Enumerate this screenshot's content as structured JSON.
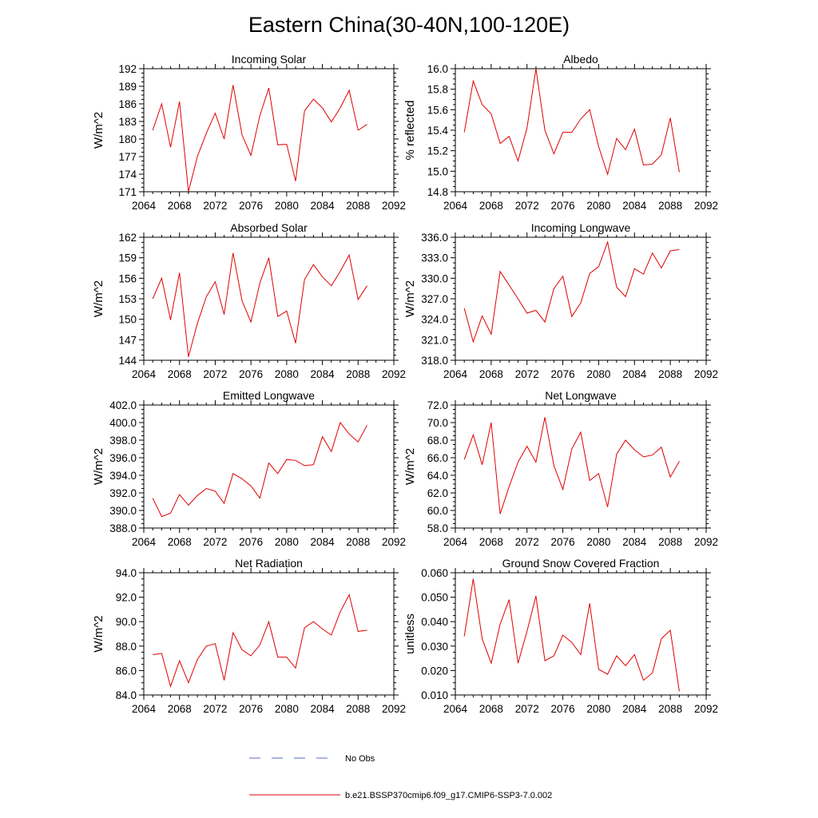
{
  "figure": {
    "title": "Eastern China(30-40N,100-120E)",
    "series_color": "#e00000",
    "obs_color": "#5566cc"
  },
  "legend": {
    "obs_label": "No Obs",
    "model_label": "b.e21.BSSP370cmip6.f09_g17.CMIP6-SSP3-7.0.002"
  },
  "chart_data": [
    {
      "type": "line",
      "title": "Incoming Solar",
      "ylabel": "W/m^2",
      "xlim": [
        2064,
        2092
      ],
      "ylim": [
        171,
        192
      ],
      "xticks": [
        "2064",
        "2068",
        "2072",
        "2076",
        "2080",
        "2084",
        "2088",
        "2092"
      ],
      "yticks": [
        "171",
        "174",
        "177",
        "180",
        "183",
        "186",
        "189",
        "192"
      ],
      "series": [
        {
          "x": [
            2065,
            2066,
            2067,
            2068,
            2069,
            2070,
            2071,
            2072,
            2073,
            2074,
            2075,
            2076,
            2077,
            2078,
            2079,
            2080,
            2081,
            2082,
            2083,
            2084,
            2085,
            2086,
            2087,
            2088,
            2089
          ],
          "y": [
            181.5,
            186.0,
            178.6,
            186.4,
            171.0,
            177.0,
            181.0,
            184.4,
            180.0,
            189.2,
            180.7,
            177.2,
            184.0,
            188.7,
            179.0,
            179.1,
            172.8,
            184.8,
            186.8,
            185.3,
            182.9,
            185.3,
            188.3,
            181.5,
            182.5
          ]
        }
      ]
    },
    {
      "type": "line",
      "title": "Albedo",
      "ylabel": "% reflected",
      "xlim": [
        2064,
        2092
      ],
      "ylim": [
        14.8,
        16.0
      ],
      "xticks": [
        "2064",
        "2068",
        "2072",
        "2076",
        "2080",
        "2084",
        "2088",
        "2092"
      ],
      "yticks": [
        "14.8",
        "15.0",
        "15.2",
        "15.4",
        "15.6",
        "15.8",
        "16.0"
      ],
      "series": [
        {
          "x": [
            2065,
            2066,
            2067,
            2068,
            2069,
            2070,
            2071,
            2072,
            2073,
            2074,
            2075,
            2076,
            2077,
            2078,
            2079,
            2080,
            2081,
            2082,
            2083,
            2084,
            2085,
            2086,
            2087,
            2088,
            2089
          ],
          "y": [
            15.38,
            15.88,
            15.65,
            15.56,
            15.27,
            15.34,
            15.1,
            15.42,
            16.0,
            15.4,
            15.17,
            15.38,
            15.38,
            15.51,
            15.6,
            15.24,
            14.97,
            15.32,
            15.21,
            15.41,
            15.06,
            15.07,
            15.16,
            15.52,
            14.99
          ]
        }
      ]
    },
    {
      "type": "line",
      "title": "Absorbed Solar",
      "ylabel": "W/m^2",
      "xlim": [
        2064,
        2092
      ],
      "ylim": [
        144,
        162
      ],
      "xticks": [
        "2064",
        "2068",
        "2072",
        "2076",
        "2080",
        "2084",
        "2088",
        "2092"
      ],
      "yticks": [
        "144",
        "147",
        "150",
        "153",
        "156",
        "159",
        "162"
      ],
      "series": [
        {
          "x": [
            2065,
            2066,
            2067,
            2068,
            2069,
            2070,
            2071,
            2072,
            2073,
            2074,
            2075,
            2076,
            2077,
            2078,
            2079,
            2080,
            2081,
            2082,
            2083,
            2084,
            2085,
            2086,
            2087,
            2088,
            2089
          ],
          "y": [
            153.0,
            156.0,
            149.9,
            156.8,
            144.5,
            149.4,
            153.3,
            155.5,
            150.7,
            159.7,
            152.7,
            149.6,
            155.3,
            159.0,
            150.4,
            151.2,
            146.5,
            155.8,
            158.0,
            156.2,
            154.9,
            157.0,
            159.4,
            152.9,
            154.9
          ]
        }
      ]
    },
    {
      "type": "line",
      "title": "Incoming Longwave",
      "ylabel": "W/m^2",
      "xlim": [
        2064,
        2092
      ],
      "ylim": [
        318.0,
        336.0
      ],
      "xticks": [
        "2064",
        "2068",
        "2072",
        "2076",
        "2080",
        "2084",
        "2088",
        "2092"
      ],
      "yticks": [
        "318.0",
        "321.0",
        "324.0",
        "327.0",
        "330.0",
        "333.0",
        "336.0"
      ],
      "series": [
        {
          "x": [
            2065,
            2066,
            2067,
            2068,
            2069,
            2070,
            2071,
            2072,
            2073,
            2074,
            2075,
            2076,
            2077,
            2078,
            2079,
            2080,
            2081,
            2082,
            2083,
            2084,
            2085,
            2086,
            2087,
            2088,
            2089
          ],
          "y": [
            325.6,
            320.7,
            324.5,
            321.8,
            331.0,
            329.0,
            327.0,
            324.9,
            325.3,
            323.6,
            328.5,
            330.3,
            324.4,
            326.4,
            330.7,
            331.7,
            335.3,
            328.7,
            327.3,
            331.4,
            330.6,
            333.7,
            331.5,
            334.0,
            334.2
          ]
        }
      ]
    },
    {
      "type": "line",
      "title": "Emitted Longwave",
      "ylabel": "W/m^2",
      "xlim": [
        2064,
        2092
      ],
      "ylim": [
        388.0,
        402.0
      ],
      "xticks": [
        "2064",
        "2068",
        "2072",
        "2076",
        "2080",
        "2084",
        "2088",
        "2092"
      ],
      "yticks": [
        "388.0",
        "390.0",
        "392.0",
        "394.0",
        "396.0",
        "398.0",
        "400.0",
        "402.0"
      ],
      "series": [
        {
          "x": [
            2065,
            2066,
            2067,
            2068,
            2069,
            2070,
            2071,
            2072,
            2073,
            2074,
            2075,
            2076,
            2077,
            2078,
            2079,
            2080,
            2081,
            2082,
            2083,
            2084,
            2085,
            2086,
            2087,
            2088,
            2089
          ],
          "y": [
            391.4,
            389.3,
            389.7,
            391.8,
            390.6,
            391.7,
            392.5,
            392.2,
            390.8,
            394.2,
            393.6,
            392.8,
            391.4,
            395.4,
            394.2,
            395.8,
            395.7,
            395.1,
            395.2,
            398.4,
            396.7,
            400.0,
            398.7,
            397.8,
            399.7
          ]
        }
      ]
    },
    {
      "type": "line",
      "title": "Net Longwave",
      "ylabel": "W/m^2",
      "xlim": [
        2064,
        2092
      ],
      "ylim": [
        58.0,
        72.0
      ],
      "xticks": [
        "2064",
        "2068",
        "2072",
        "2076",
        "2080",
        "2084",
        "2088",
        "2092"
      ],
      "yticks": [
        "58.0",
        "60.0",
        "62.0",
        "64.0",
        "66.0",
        "68.0",
        "70.0",
        "72.0"
      ],
      "series": [
        {
          "x": [
            2065,
            2066,
            2067,
            2068,
            2069,
            2070,
            2071,
            2072,
            2073,
            2074,
            2075,
            2076,
            2077,
            2078,
            2079,
            2080,
            2081,
            2082,
            2083,
            2084,
            2085,
            2086,
            2087,
            2088,
            2089
          ],
          "y": [
            65.8,
            68.6,
            65.2,
            70.0,
            59.6,
            62.7,
            65.5,
            67.3,
            65.5,
            70.6,
            65.1,
            62.4,
            67.0,
            68.9,
            63.4,
            64.2,
            60.4,
            66.4,
            68.0,
            66.9,
            66.1,
            66.3,
            67.2,
            63.8,
            65.6
          ]
        }
      ]
    },
    {
      "type": "line",
      "title": "Net Radiation",
      "ylabel": "W/m^2",
      "xlim": [
        2064,
        2092
      ],
      "ylim": [
        84.0,
        94.0
      ],
      "xticks": [
        "2064",
        "2068",
        "2072",
        "2076",
        "2080",
        "2084",
        "2088",
        "2092"
      ],
      "yticks": [
        "84.0",
        "86.0",
        "88.0",
        "90.0",
        "92.0",
        "94.0"
      ],
      "series": [
        {
          "x": [
            2065,
            2066,
            2067,
            2068,
            2069,
            2070,
            2071,
            2072,
            2073,
            2074,
            2075,
            2076,
            2077,
            2078,
            2079,
            2080,
            2081,
            2082,
            2083,
            2084,
            2085,
            2086,
            2087,
            2088,
            2089
          ],
          "y": [
            87.3,
            87.4,
            84.7,
            86.8,
            85.0,
            86.9,
            88.0,
            88.2,
            85.2,
            89.1,
            87.7,
            87.2,
            88.1,
            90.0,
            87.1,
            87.1,
            86.2,
            89.5,
            90.0,
            89.4,
            88.9,
            90.8,
            92.2,
            89.2,
            89.3
          ]
        }
      ]
    },
    {
      "type": "line",
      "title": "Ground Snow Covered Fraction",
      "ylabel": "unitless",
      "xlim": [
        2064,
        2092
      ],
      "ylim": [
        0.01,
        0.06
      ],
      "xticks": [
        "2064",
        "2068",
        "2072",
        "2076",
        "2080",
        "2084",
        "2088",
        "2092"
      ],
      "yticks": [
        "0.010",
        "0.020",
        "0.030",
        "0.040",
        "0.050",
        "0.060"
      ],
      "series": [
        {
          "x": [
            2065,
            2066,
            2067,
            2068,
            2069,
            2070,
            2071,
            2072,
            2073,
            2074,
            2075,
            2076,
            2077,
            2078,
            2079,
            2080,
            2081,
            2082,
            2083,
            2084,
            2085,
            2086,
            2087,
            2088,
            2089
          ],
          "y": [
            0.034,
            0.0575,
            0.033,
            0.023,
            0.039,
            0.049,
            0.023,
            0.036,
            0.0505,
            0.024,
            0.026,
            0.0345,
            0.0315,
            0.0265,
            0.0475,
            0.0205,
            0.0185,
            0.026,
            0.022,
            0.0265,
            0.016,
            0.019,
            0.033,
            0.0365,
            0.0115
          ]
        }
      ]
    }
  ]
}
